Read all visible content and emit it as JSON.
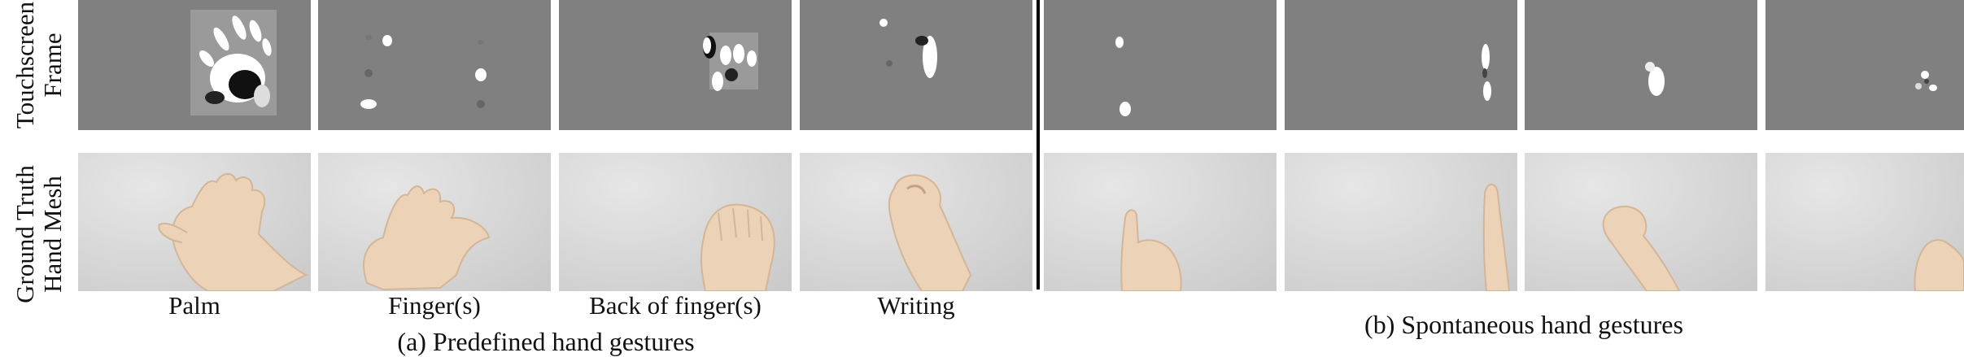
{
  "rows": {
    "top": [
      "Touchscreen",
      "Frame"
    ],
    "bottom": [
      "Ground Truth",
      "Hand Mesh"
    ]
  },
  "gestures": {
    "predefined": [
      "Palm",
      "Finger(s)",
      "Back of finger(s)",
      "Writing"
    ]
  },
  "captions": {
    "predefined": "(a) Predefined hand gestures",
    "spontaneous": "(b) Spontaneous hand gestures"
  },
  "colors": {
    "touch_background": "#808080",
    "blob_highlight": "#ffffff",
    "blob_shadow": "#000000",
    "mesh_background": "#d9d9d9",
    "skin": "#ecd3b8",
    "divider": "#000000"
  }
}
